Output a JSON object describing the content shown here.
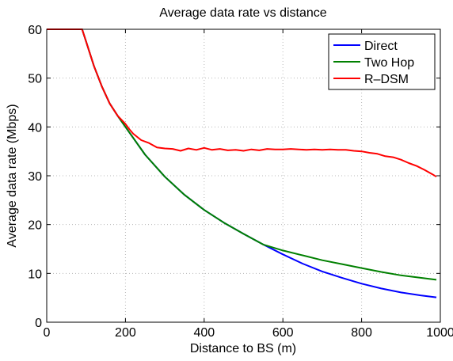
{
  "chart_data": {
    "type": "line",
    "title": "Average data rate vs distance",
    "xlabel": "Distance to BS (m)",
    "ylabel": "Average data rate (Mbps)",
    "xlim": [
      0,
      1000
    ],
    "ylim": [
      0,
      60
    ],
    "xticks": [
      0,
      200,
      400,
      600,
      800,
      1000
    ],
    "yticks": [
      0,
      10,
      20,
      30,
      40,
      50,
      60
    ],
    "grid": true,
    "legend_position": "top-right",
    "series": [
      {
        "name": "Direct",
        "color": "#0000ff",
        "x": [
          0,
          80,
          90,
          100,
          120,
          140,
          160,
          180,
          200,
          250,
          300,
          350,
          400,
          450,
          500,
          550,
          600,
          650,
          700,
          750,
          800,
          850,
          900,
          950,
          990
        ],
        "y": [
          60,
          60,
          60,
          57.5,
          52.5,
          48.3,
          44.8,
          42.3,
          40,
          34.3,
          29.8,
          26.1,
          23,
          20.4,
          18.1,
          15.9,
          13.9,
          12,
          10.4,
          9.1,
          7.9,
          6.9,
          6.1,
          5.5,
          5.1
        ]
      },
      {
        "name": "Two Hop",
        "color": "#008000",
        "x": [
          0,
          80,
          90,
          100,
          120,
          140,
          160,
          180,
          200,
          250,
          300,
          350,
          400,
          450,
          500,
          550,
          600,
          650,
          700,
          750,
          800,
          850,
          900,
          950,
          990
        ],
        "y": [
          60,
          60,
          60,
          57.5,
          52.5,
          48.3,
          44.8,
          42.3,
          40,
          34.3,
          29.8,
          26.1,
          23,
          20.4,
          18.1,
          15.9,
          14.7,
          13.7,
          12.7,
          11.9,
          11.1,
          10.3,
          9.6,
          9.1,
          8.7
        ]
      },
      {
        "name": "R–DSM",
        "color": "#ff0000",
        "x": [
          0,
          80,
          90,
          100,
          120,
          140,
          160,
          180,
          200,
          210,
          220,
          240,
          260,
          280,
          300,
          320,
          340,
          360,
          380,
          400,
          420,
          440,
          460,
          480,
          500,
          520,
          540,
          560,
          580,
          600,
          620,
          640,
          660,
          680,
          700,
          720,
          740,
          760,
          780,
          800,
          820,
          840,
          860,
          880,
          900,
          920,
          940,
          960,
          980,
          990
        ],
        "y": [
          60,
          60,
          60,
          57.5,
          52.5,
          48.3,
          44.8,
          42.3,
          40.6,
          39.5,
          38.6,
          37.3,
          36.7,
          35.8,
          35.6,
          35.5,
          35.1,
          35.6,
          35.3,
          35.7,
          35.3,
          35.5,
          35.2,
          35.3,
          35.1,
          35.4,
          35.2,
          35.5,
          35.4,
          35.4,
          35.5,
          35.4,
          35.3,
          35.4,
          35.3,
          35.4,
          35.3,
          35.3,
          35.1,
          35.0,
          34.7,
          34.5,
          34.0,
          33.8,
          33.3,
          32.6,
          32.0,
          31.2,
          30.3,
          29.8
        ]
      }
    ]
  }
}
